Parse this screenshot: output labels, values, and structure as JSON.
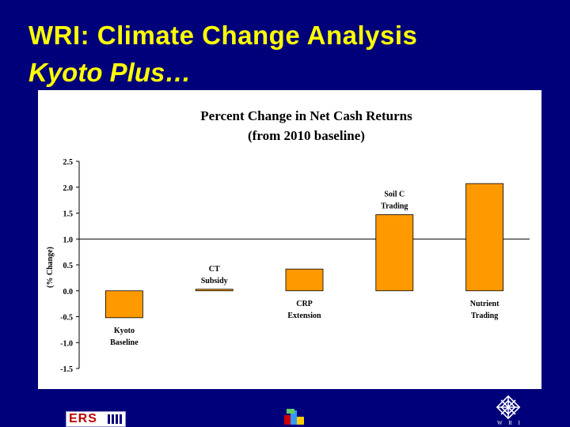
{
  "slide": {
    "title_line1": "WRI: Climate Change Analysis",
    "title_line2": "Kyoto Plus…"
  },
  "logos": {
    "ers_text": "ERS",
    "wri_text": "W R I"
  },
  "chart_data": {
    "type": "bar",
    "title": "Percent Change in Net Cash Returns",
    "subtitle": "(from 2010 baseline)",
    "ylabel": "(% Change)",
    "xlabel": "",
    "ylim": [
      -1.5,
      2.5
    ],
    "yticks": [
      -1.5,
      -1.0,
      -0.5,
      0.0,
      0.5,
      1.0,
      1.5,
      2.0,
      2.5
    ],
    "ytick_labels": [
      "-1.5",
      "-1.0",
      "-0.5",
      "0.0",
      "0.5",
      "1.0",
      "1.5",
      "2.0",
      "2.5"
    ],
    "reference_line": 1.0,
    "grid": false,
    "bar_color": "#ff9900",
    "categories": [
      [
        "Kyoto",
        "Baseline"
      ],
      [
        "CT",
        "Subsidy"
      ],
      [
        "CRP",
        "Extension"
      ],
      [
        "Soil C",
        "Trading"
      ],
      [
        "Nutrient",
        "Trading"
      ]
    ],
    "values": [
      -0.52,
      0.03,
      0.42,
      1.47,
      2.07
    ],
    "label_side": [
      "below",
      "above",
      "below",
      "above",
      "below"
    ]
  }
}
